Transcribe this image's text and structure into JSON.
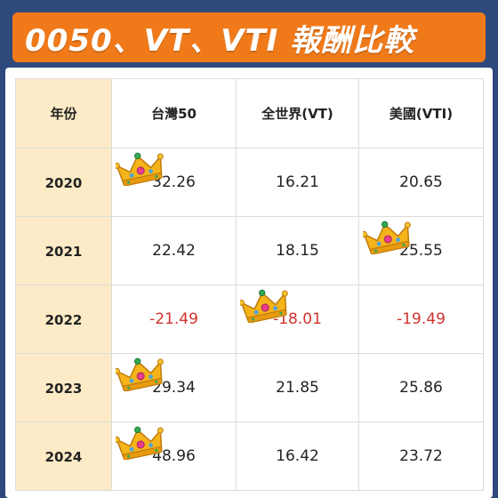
{
  "title": "0050、VT、VTI 報酬比較",
  "columns": [
    "年份",
    "台灣50",
    "全世界(VT)",
    "美國(VTI)"
  ],
  "rows": [
    {
      "year": "2020",
      "values": [
        "32.26",
        "16.21",
        "20.65"
      ],
      "crown_col": 0
    },
    {
      "year": "2021",
      "values": [
        "22.42",
        "18.15",
        "25.55"
      ],
      "crown_col": 2
    },
    {
      "year": "2022",
      "values": [
        "-21.49",
        "-18.01",
        "-19.49"
      ],
      "crown_col": 1
    },
    {
      "year": "2023",
      "values": [
        "29.34",
        "21.85",
        "25.86"
      ],
      "crown_col": 0
    },
    {
      "year": "2024",
      "values": [
        "48.96",
        "16.42",
        "23.72"
      ],
      "crown_col": 0
    }
  ],
  "colors": {
    "background": "#2e4a7d",
    "banner": "#f07a1a",
    "year_column": "#fcebc6",
    "negative": "#d0322e"
  },
  "icons": {
    "best_return_marker": "crown-icon"
  }
}
